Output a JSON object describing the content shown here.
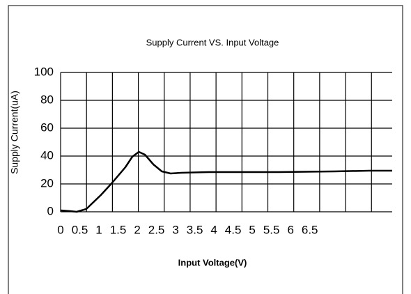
{
  "chart_data": {
    "type": "line",
    "title": "Supply Current VS. Input Voltage",
    "x_label": "Input Voltage(V)",
    "y_label": "Supply Current(uA)",
    "x": [
      0,
      0.24,
      0.42,
      0.67,
      1.05,
      1.35,
      1.69,
      1.87,
      2.04,
      2.2,
      2.42,
      2.64,
      2.87,
      3.15,
      3.87,
      5.69,
      7.15,
      8.05,
      8.65
    ],
    "series": [
      {
        "name": "Supply Current",
        "color": "#000000",
        "values": [
          1,
          0.5,
          0,
          2,
          12,
          21,
          32,
          39.5,
          43,
          41,
          34,
          29,
          27.5,
          28,
          28.5,
          28.5,
          29,
          29.5,
          29.5
        ]
      }
    ],
    "xlim": [
      0,
      8.65
    ],
    "xticks": [
      0,
      0.5,
      1,
      1.5,
      2,
      2.5,
      3,
      3.5,
      4,
      4.5,
      5,
      5.5,
      6,
      6.5
    ],
    "ylim": [
      0,
      100
    ],
    "yticks": [
      0,
      20,
      40,
      60,
      80,
      100
    ],
    "grid": true
  }
}
